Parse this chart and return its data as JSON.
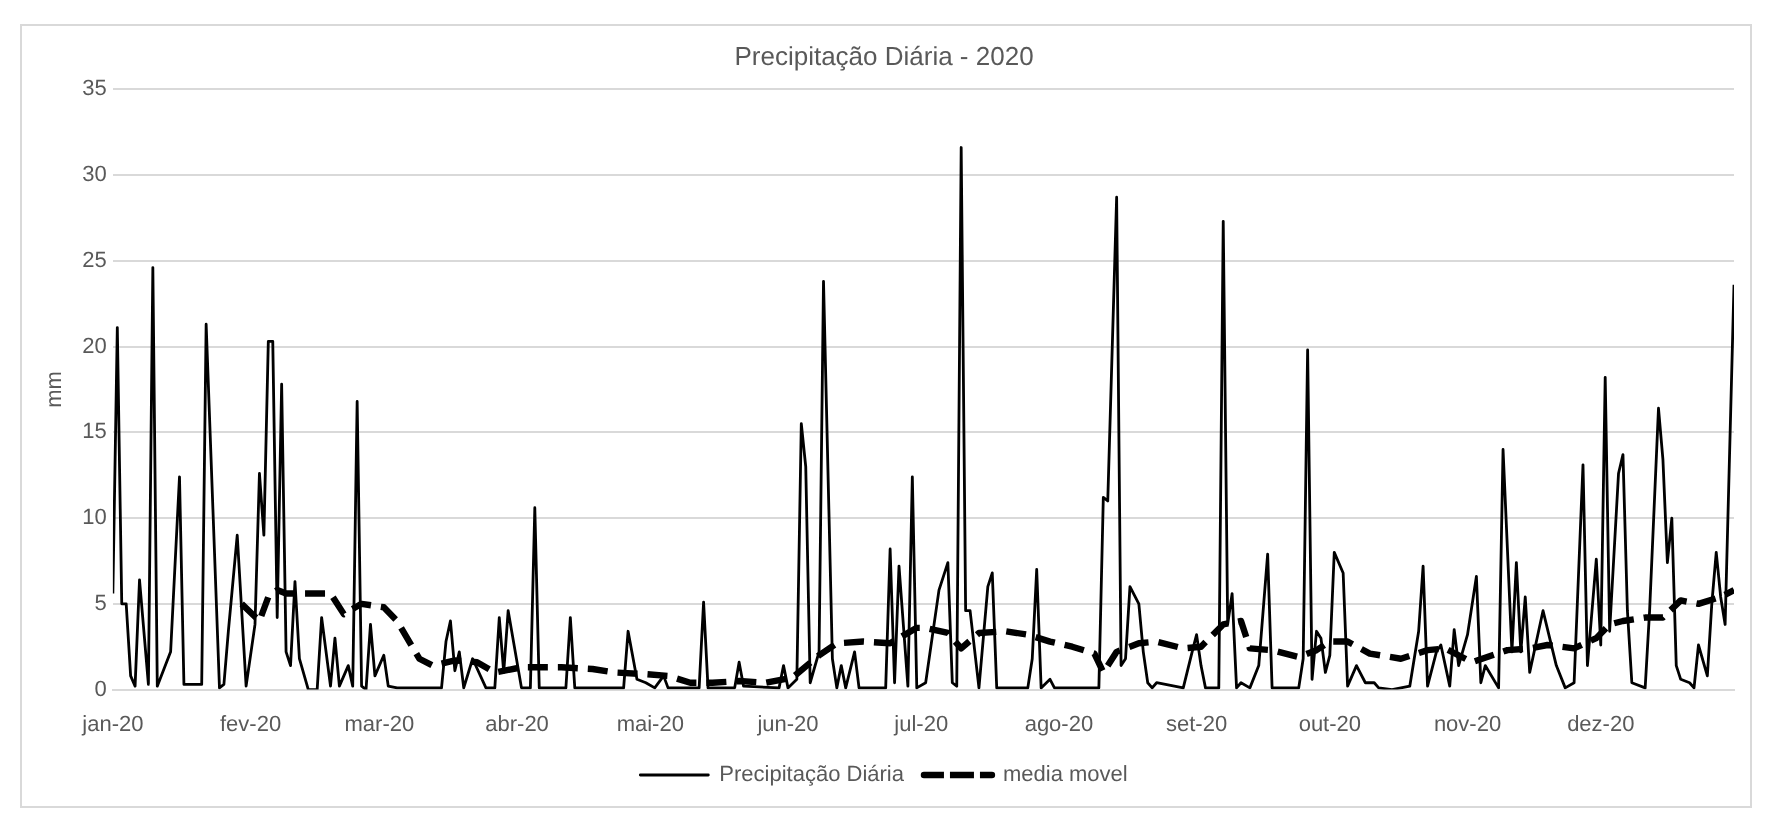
{
  "chart_data": {
    "type": "line",
    "title": "Precipitação Diária - 2020",
    "ylabel": "mm",
    "xlim": [
      "2020-01-01",
      "2020-12-31"
    ],
    "xticks": [
      {
        "value": "2020-01-01",
        "label": "jan-20"
      },
      {
        "value": "2020-02-01",
        "label": "fev-20"
      },
      {
        "value": "2020-03-01",
        "label": "mar-20"
      },
      {
        "value": "2020-04-01",
        "label": "abr-20"
      },
      {
        "value": "2020-05-01",
        "label": "mai-20"
      },
      {
        "value": "2020-06-01",
        "label": "jun-20"
      },
      {
        "value": "2020-07-01",
        "label": "jul-20"
      },
      {
        "value": "2020-08-01",
        "label": "ago-20"
      },
      {
        "value": "2020-09-01",
        "label": "set-20"
      },
      {
        "value": "2020-10-01",
        "label": "out-20"
      },
      {
        "value": "2020-11-01",
        "label": "nov-20"
      },
      {
        "value": "2020-12-01",
        "label": "dez-20"
      }
    ],
    "ylim": [
      0,
      35
    ],
    "yticks": [
      0,
      5,
      10,
      15,
      20,
      25,
      30,
      35
    ],
    "grid": "y",
    "legend": "bottom",
    "marker": "none",
    "series": [
      {
        "name": "Precipitação Diária",
        "color": "#000000",
        "line_style": "solid",
        "x": [
          "2020-01-01",
          "2020-01-02",
          "2020-01-03",
          "2020-01-04",
          "2020-01-05",
          "2020-01-06",
          "2020-01-07",
          "2020-01-09",
          "2020-01-10",
          "2020-01-11",
          "2020-01-14",
          "2020-01-16",
          "2020-01-17",
          "2020-01-21",
          "2020-01-22",
          "2020-01-25",
          "2020-01-26",
          "2020-01-27",
          "2020-01-29",
          "2020-01-30",
          "2020-01-31",
          "2020-02-02",
          "2020-02-03",
          "2020-02-04",
          "2020-02-05",
          "2020-02-06",
          "2020-02-07",
          "2020-02-08",
          "2020-02-09",
          "2020-02-10",
          "2020-02-11",
          "2020-02-12",
          "2020-02-14",
          "2020-02-16",
          "2020-02-17",
          "2020-02-19",
          "2020-02-20",
          "2020-02-21",
          "2020-02-23",
          "2020-02-24",
          "2020-02-25",
          "2020-02-26",
          "2020-02-27",
          "2020-02-28",
          "2020-02-29",
          "2020-03-02",
          "2020-03-03",
          "2020-03-05",
          "2020-03-15",
          "2020-03-16",
          "2020-03-17",
          "2020-03-18",
          "2020-03-19",
          "2020-03-20",
          "2020-03-22",
          "2020-03-25",
          "2020-03-27",
          "2020-03-28",
          "2020-03-29",
          "2020-03-30",
          "2020-04-02",
          "2020-04-04",
          "2020-04-05",
          "2020-04-06",
          "2020-04-12",
          "2020-04-13",
          "2020-04-14",
          "2020-04-25",
          "2020-04-26",
          "2020-04-28",
          "2020-04-30",
          "2020-05-02",
          "2020-05-04",
          "2020-05-05",
          "2020-05-12",
          "2020-05-13",
          "2020-05-14",
          "2020-05-20",
          "2020-05-21",
          "2020-05-22",
          "2020-05-30",
          "2020-05-31",
          "2020-06-01",
          "2020-06-03",
          "2020-06-04",
          "2020-06-05",
          "2020-06-06",
          "2020-06-08",
          "2020-06-09",
          "2020-06-11",
          "2020-06-12",
          "2020-06-13",
          "2020-06-14",
          "2020-06-16",
          "2020-06-17",
          "2020-06-23",
          "2020-06-24",
          "2020-06-25",
          "2020-06-26",
          "2020-06-28",
          "2020-06-29",
          "2020-06-30",
          "2020-07-02",
          "2020-07-05",
          "2020-07-07",
          "2020-07-08",
          "2020-07-09",
          "2020-07-10",
          "2020-07-11",
          "2020-07-12",
          "2020-07-14",
          "2020-07-16",
          "2020-07-17",
          "2020-07-18",
          "2020-07-25",
          "2020-07-26",
          "2020-07-27",
          "2020-07-28",
          "2020-07-30",
          "2020-07-31",
          "2020-08-10",
          "2020-08-11",
          "2020-08-12",
          "2020-08-14",
          "2020-08-15",
          "2020-08-16",
          "2020-08-17",
          "2020-08-19",
          "2020-08-20",
          "2020-08-21",
          "2020-08-22",
          "2020-08-23",
          "2020-08-29",
          "2020-08-31",
          "2020-09-01",
          "2020-09-02",
          "2020-09-03",
          "2020-09-06",
          "2020-09-07",
          "2020-09-08",
          "2020-09-09",
          "2020-09-10",
          "2020-09-11",
          "2020-09-13",
          "2020-09-15",
          "2020-09-17",
          "2020-09-18",
          "2020-09-24",
          "2020-09-25",
          "2020-09-26",
          "2020-09-27",
          "2020-09-28",
          "2020-09-29",
          "2020-09-30",
          "2020-10-01",
          "2020-10-02",
          "2020-10-04",
          "2020-10-05",
          "2020-10-07",
          "2020-10-09",
          "2020-10-11",
          "2020-10-12",
          "2020-10-15",
          "2020-10-19",
          "2020-10-21",
          "2020-10-22",
          "2020-10-23",
          "2020-10-25",
          "2020-10-26",
          "2020-10-28",
          "2020-10-29",
          "2020-10-30",
          "2020-11-01",
          "2020-11-03",
          "2020-11-04",
          "2020-11-05",
          "2020-11-08",
          "2020-11-09",
          "2020-11-11",
          "2020-11-12",
          "2020-11-13",
          "2020-11-14",
          "2020-11-15",
          "2020-11-17",
          "2020-11-18",
          "2020-11-21",
          "2020-11-23",
          "2020-11-25",
          "2020-11-27",
          "2020-11-28",
          "2020-11-30",
          "2020-12-01",
          "2020-12-02",
          "2020-12-03",
          "2020-12-05",
          "2020-12-06",
          "2020-12-07",
          "2020-12-08",
          "2020-12-11",
          "2020-12-12",
          "2020-12-14",
          "2020-12-15",
          "2020-12-16",
          "2020-12-17",
          "2020-12-18",
          "2020-12-19",
          "2020-12-21",
          "2020-12-22",
          "2020-12-23",
          "2020-12-25",
          "2020-12-26",
          "2020-12-27",
          "2020-12-28",
          "2020-12-29",
          "2020-12-31"
        ],
        "values": [
          5.6,
          21.1,
          5,
          5,
          0.8,
          0.2,
          6.4,
          0.3,
          24.6,
          0.2,
          2.2,
          12.4,
          0.3,
          0.3,
          21.3,
          0.1,
          0.3,
          3.4,
          9,
          4.6,
          0.2,
          3.8,
          12.6,
          9,
          20.3,
          20.3,
          4.2,
          17.8,
          2.2,
          1.4,
          6.3,
          1.8,
          0,
          0,
          4.2,
          0.2,
          3,
          0.2,
          1.4,
          0.2,
          16.8,
          0.2,
          0,
          3.8,
          0.8,
          2,
          0.2,
          0.1,
          0.1,
          2.8,
          4,
          1.1,
          2.2,
          0.1,
          1.8,
          0.1,
          0.1,
          4.2,
          1,
          4.6,
          0.1,
          0.1,
          10.6,
          0.1,
          0.1,
          4.2,
          0.1,
          0.1,
          3.4,
          0.6,
          0.4,
          0.1,
          0.8,
          0.1,
          0.1,
          5.1,
          0.1,
          0.1,
          1.6,
          0.2,
          0.1,
          1.4,
          0.1,
          0.6,
          15.5,
          13,
          0.4,
          2.2,
          23.8,
          1.8,
          0.1,
          1.4,
          0.1,
          2.2,
          0.1,
          0.1,
          8.2,
          0.4,
          7.2,
          0.2,
          12.4,
          0.1,
          0.4,
          5.8,
          7.4,
          0.4,
          0.2,
          31.6,
          4.6,
          4.6,
          0.1,
          6,
          6.8,
          0.1,
          0.1,
          1.8,
          7,
          0.1,
          0.6,
          0.1,
          0.1,
          11.2,
          11,
          28.7,
          1.4,
          1.8,
          6,
          5,
          2.2,
          0.4,
          0.1,
          0.4,
          0.1,
          2.2,
          3.2,
          1.4,
          0.1,
          0.1,
          27.3,
          3.8,
          5.6,
          0.1,
          0.4,
          0.1,
          1.4,
          7.9,
          0.1,
          0.1,
          1.8,
          19.8,
          0.6,
          3.4,
          3,
          1,
          2,
          8,
          6.8,
          0.2,
          1.4,
          0.4,
          0.4,
          0.1,
          0,
          0.2,
          3.4,
          7.2,
          0.2,
          2.2,
          2.6,
          0.2,
          3.5,
          1.4,
          3.2,
          6.6,
          0.4,
          1.4,
          0.1,
          14,
          2.2,
          7.4,
          2.2,
          5.4,
          1,
          3.4,
          4.6,
          1.4,
          0.1,
          0.4,
          13.1,
          1.4,
          7.6,
          2.6,
          18.2,
          3.4,
          12.6,
          13.7,
          4.6,
          0.4,
          0.1,
          4.6,
          16.4,
          13.4,
          7.4,
          10,
          1.4,
          0.6,
          0.4,
          0.1,
          2.6,
          0.8,
          5,
          8,
          5.4,
          3.8,
          23.6
        ]
      },
      {
        "name": "media movel",
        "color": "#000000",
        "line_style": "dashed",
        "x": [
          "2020-01-30",
          "2020-02-03",
          "2020-02-05",
          "2020-02-07",
          "2020-02-09",
          "2020-02-14",
          "2020-02-19",
          "2020-02-22",
          "2020-02-26",
          "2020-03-02",
          "2020-03-05",
          "2020-03-10",
          "2020-03-13",
          "2020-03-18",
          "2020-03-23",
          "2020-03-27",
          "2020-04-02",
          "2020-04-11",
          "2020-04-18",
          "2020-04-23",
          "2020-04-30",
          "2020-05-05",
          "2020-05-10",
          "2020-05-15",
          "2020-05-21",
          "2020-05-27",
          "2020-06-02",
          "2020-06-08",
          "2020-06-12",
          "2020-06-18",
          "2020-06-24",
          "2020-06-30",
          "2020-07-02",
          "2020-07-07",
          "2020-07-10",
          "2020-07-14",
          "2020-07-20",
          "2020-07-25",
          "2020-07-30",
          "2020-08-04",
          "2020-08-09",
          "2020-08-11",
          "2020-08-14",
          "2020-08-19",
          "2020-08-23",
          "2020-08-29",
          "2020-09-02",
          "2020-09-07",
          "2020-09-11",
          "2020-09-13",
          "2020-09-18",
          "2020-09-24",
          "2020-09-28",
          "2020-10-01",
          "2020-10-05",
          "2020-10-10",
          "2020-10-17",
          "2020-10-23",
          "2020-10-27",
          "2020-11-02",
          "2020-11-10",
          "2020-11-15",
          "2020-11-19",
          "2020-11-25",
          "2020-11-30",
          "2020-12-03",
          "2020-12-06",
          "2020-12-11",
          "2020-12-15",
          "2020-12-19",
          "2020-12-23",
          "2020-12-28",
          "2020-12-31"
        ],
        "values": [
          5,
          4,
          5.4,
          5.8,
          5.6,
          5.6,
          5.6,
          4.4,
          5,
          4.8,
          4,
          1.8,
          1.4,
          1.7,
          1.6,
          1,
          1.3,
          1.3,
          1.2,
          1,
          0.9,
          0.8,
          0.4,
          0.4,
          0.5,
          0.4,
          0.7,
          2,
          2.7,
          2.8,
          2.7,
          3.6,
          3.6,
          3.3,
          2.4,
          3.3,
          3.4,
          3.2,
          2.8,
          2.5,
          2.1,
          1,
          2.2,
          2.7,
          2.8,
          2.4,
          2.5,
          3.8,
          4,
          2.4,
          2.3,
          1.9,
          2.3,
          2.8,
          2.8,
          2.1,
          1.8,
          2.3,
          2.4,
          1.6,
          2.3,
          2.4,
          2.6,
          2.4,
          3,
          3.8,
          4,
          4.2,
          4.2,
          5.2,
          5,
          5.4,
          5.8
        ]
      }
    ]
  }
}
